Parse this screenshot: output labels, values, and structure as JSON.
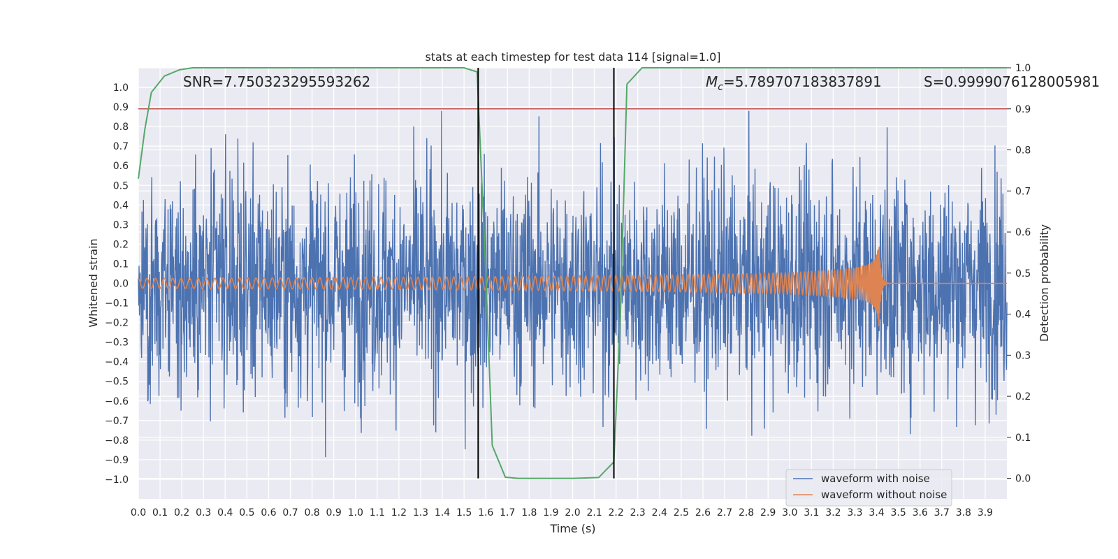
{
  "chart_data": {
    "type": "line",
    "title": "stats at each timestep for test data 114 [signal=1.0]",
    "xlabel": "Time (s)",
    "ylabel_left": "Whitened strain",
    "ylabel_right": "Detection probability",
    "xlim": [
      0.0,
      4.0
    ],
    "ylim_left": [
      -1.1,
      1.1
    ],
    "ylim_right": [
      -0.05,
      1.0
    ],
    "x_ticks": [
      "0.0",
      "0.1",
      "0.2",
      "0.3",
      "0.4",
      "0.5",
      "0.6",
      "0.7",
      "0.8",
      "0.9",
      "1.0",
      "1.1",
      "1.2",
      "1.3",
      "1.4",
      "1.5",
      "1.6",
      "1.7",
      "1.8",
      "1.9",
      "2.0",
      "2.1",
      "2.2",
      "2.3",
      "2.4",
      "2.5",
      "2.6",
      "2.7",
      "2.8",
      "2.9",
      "3.0",
      "3.1",
      "3.2",
      "3.3",
      "3.4",
      "3.5",
      "3.6",
      "3.7",
      "3.8",
      "3.9"
    ],
    "y_ticks_left": [
      "1.0",
      "0.9",
      "0.8",
      "0.7",
      "0.6",
      "0.5",
      "0.4",
      "0.3",
      "0.2",
      "0.1",
      "0.0",
      "−0.1",
      "−0.2",
      "−0.3",
      "−0.4",
      "−0.5",
      "−0.6",
      "−0.7",
      "−0.8",
      "−0.9",
      "−1.0"
    ],
    "y_ticks_right": [
      "1.0",
      "0.9",
      "0.8",
      "0.7",
      "0.6",
      "0.5",
      "0.4",
      "0.3",
      "0.2",
      "0.1",
      "0.0"
    ],
    "annotations": {
      "snr": "SNR=7.750323295593262",
      "mc_symbol": "M",
      "mc_sub": "c",
      "mc_value": "=5.789707183837891",
      "s": "S=0.9999076128005981"
    },
    "threshold": {
      "axis": "right",
      "value": 0.9,
      "color": "#c44e52"
    },
    "vlines": [
      1.565,
      2.19
    ],
    "series": [
      {
        "name": "waveform with noise",
        "axis": "left",
        "color": "#4c72b0",
        "kind": "noise",
        "amplitude_envelope": [
          -0.95,
          0.88
        ],
        "mean": 0.0
      },
      {
        "name": "waveform without noise",
        "axis": "left",
        "color": "#dd8452",
        "kind": "chirp",
        "start_amplitude": 0.025,
        "peak_amplitude": 0.2,
        "start_freq_hz": 25,
        "merger_time": 3.41,
        "min_after_merger": -0.24
      },
      {
        "name": "detection probability",
        "axis": "right",
        "color": "#55a868",
        "kind": "line",
        "x": [
          0.0,
          0.03,
          0.06,
          0.12,
          0.19,
          0.25,
          0.5,
          1.0,
          1.5,
          1.56,
          1.6,
          1.63,
          1.69,
          1.75,
          2.0,
          2.12,
          2.19,
          2.22,
          2.25,
          2.32,
          2.6,
          3.0,
          3.5,
          4.0
        ],
        "y": [
          0.73,
          0.85,
          0.94,
          0.98,
          0.995,
          1.0,
          1.0,
          1.0,
          1.0,
          0.99,
          0.5,
          0.08,
          0.003,
          0.0,
          0.0,
          0.002,
          0.04,
          0.4,
          0.96,
          1.0,
          1.0,
          1.0,
          1.0,
          1.0
        ]
      }
    ],
    "legend": {
      "position": "lower-right",
      "entries": [
        {
          "label": "waveform with noise",
          "color": "#4c72b0"
        },
        {
          "label": "waveform without noise",
          "color": "#dd8452"
        }
      ]
    },
    "grid": true,
    "style": {
      "plot_bg": "#eaeaf2",
      "grid_color": "#ffffff"
    }
  }
}
